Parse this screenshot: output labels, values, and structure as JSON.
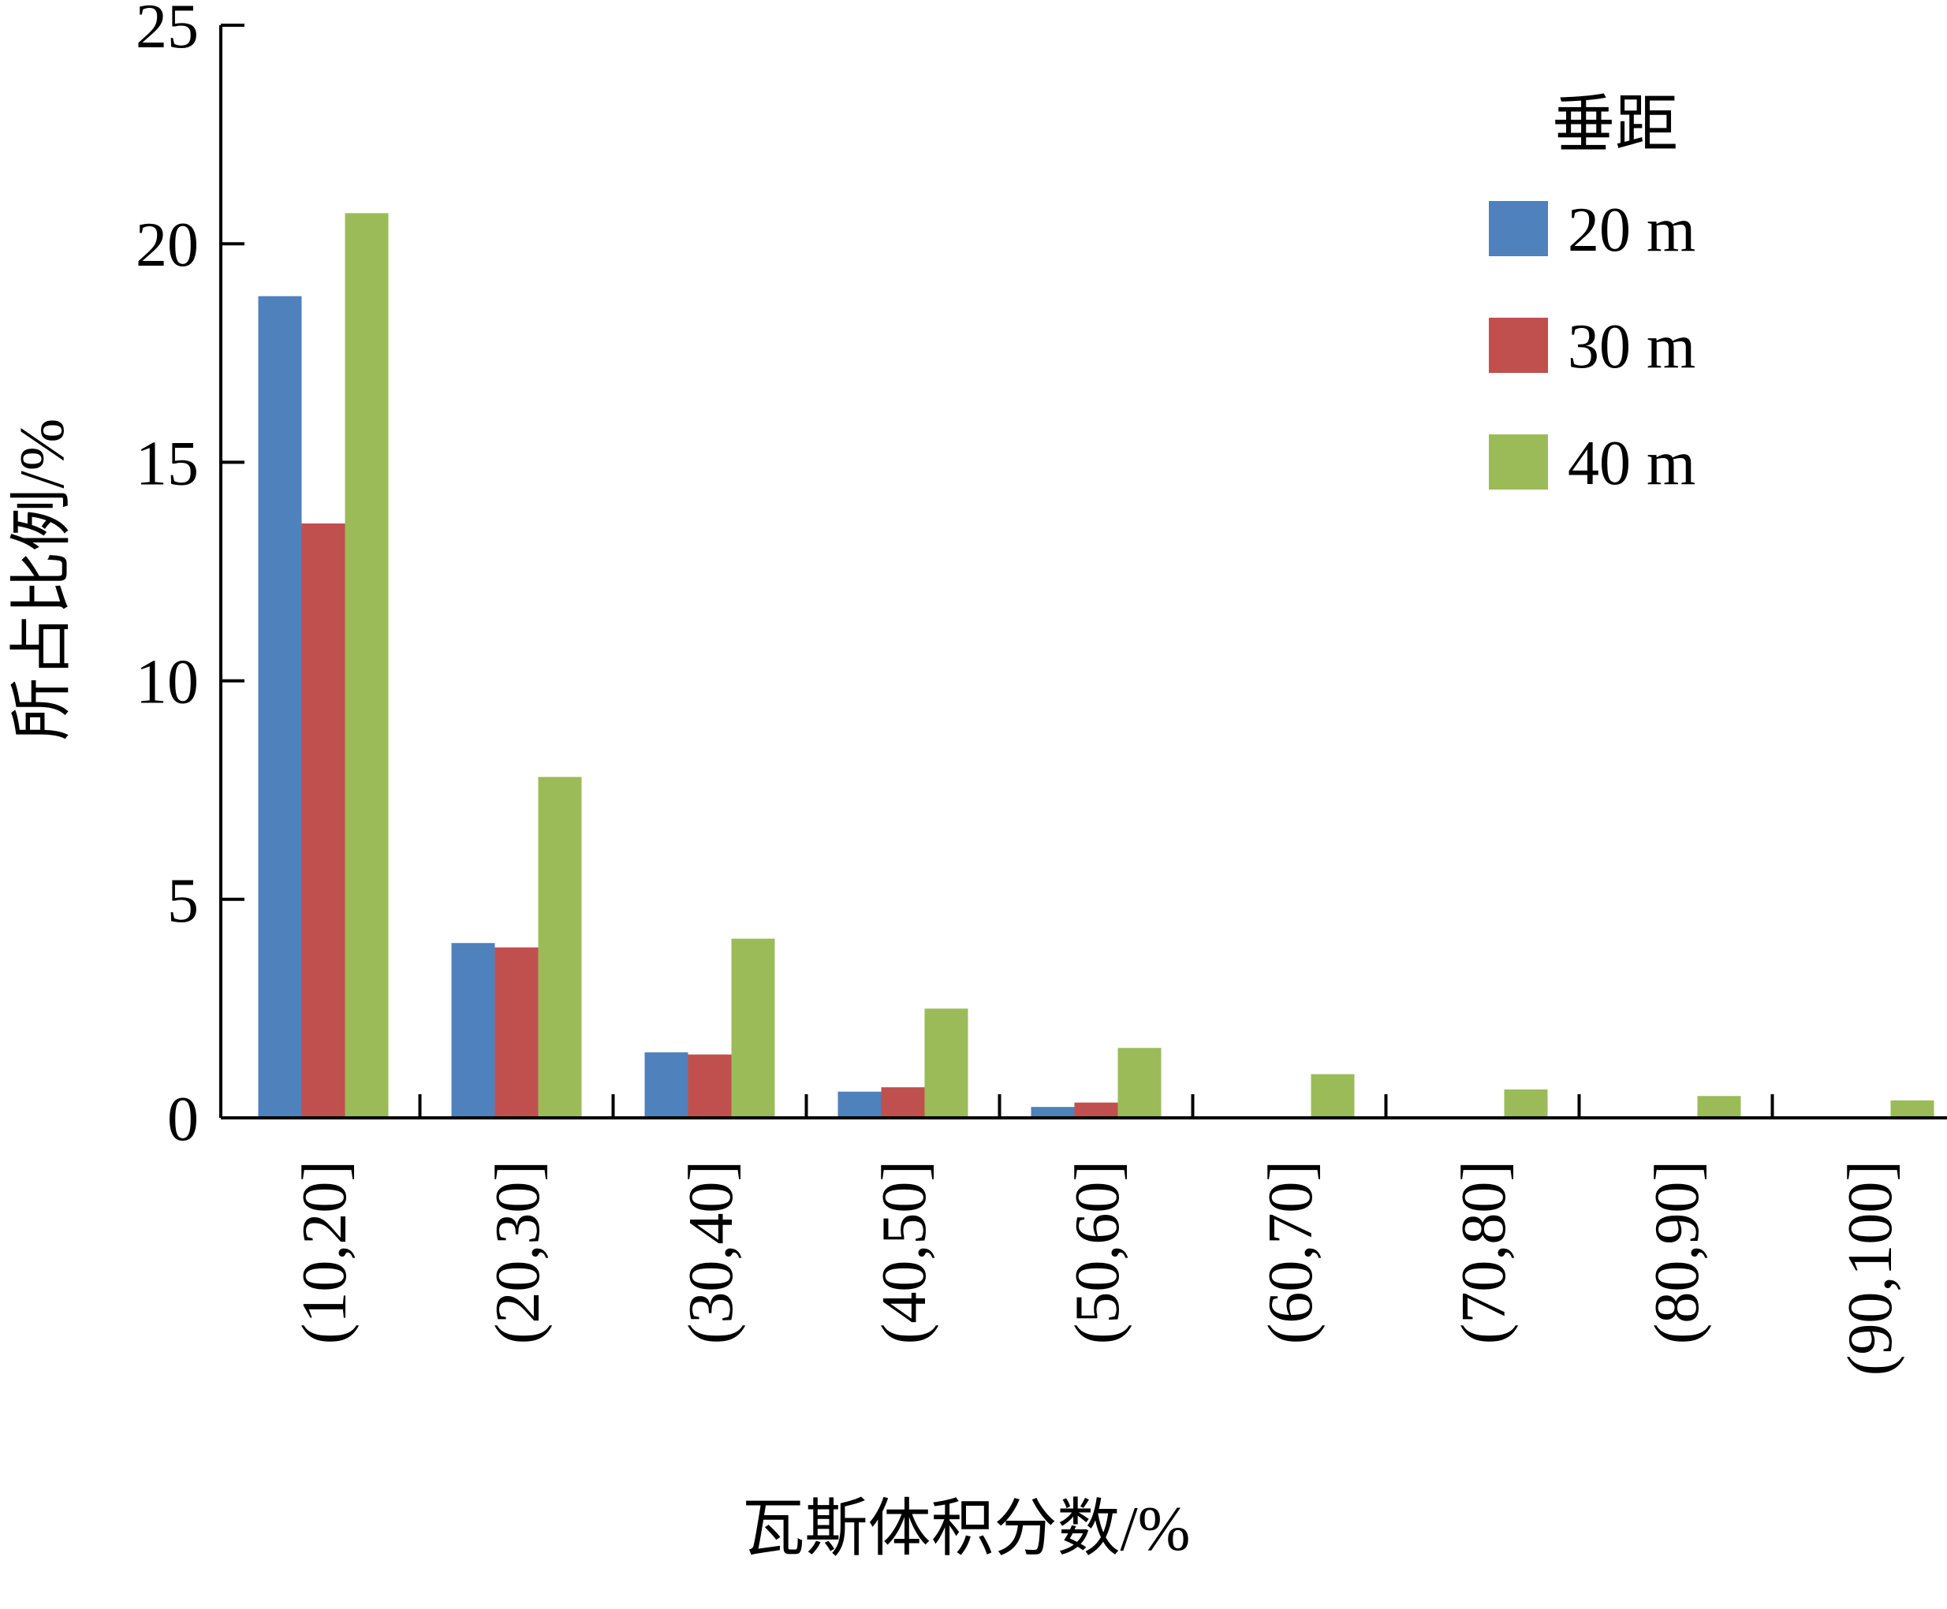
{
  "chart_data": {
    "type": "bar",
    "categories": [
      "(10,20]",
      "(20,30]",
      "(30,40]",
      "(40,50]",
      "(50,60]",
      "(60,70]",
      "(70,80]",
      "(80,90]",
      "(90,100]"
    ],
    "series": [
      {
        "name": "20 m",
        "color": "#4f81bd",
        "values": [
          18.8,
          4.0,
          1.5,
          0.6,
          0.25,
          0,
          0,
          0,
          0
        ]
      },
      {
        "name": "30 m",
        "color": "#c0504d",
        "values": [
          13.6,
          3.9,
          1.45,
          0.7,
          0.35,
          0,
          0,
          0,
          0
        ]
      },
      {
        "name": "40 m",
        "color": "#9bbb59",
        "values": [
          20.7,
          7.8,
          4.1,
          2.5,
          1.6,
          1.0,
          0.65,
          0.5,
          0.4
        ]
      }
    ],
    "xlabel": "瓦斯体积分数/%",
    "ylabel": "所占比例/%",
    "ylim": [
      0,
      25
    ],
    "yticks": [
      0,
      5,
      10,
      15,
      20,
      25
    ],
    "legend_title": "垂距",
    "legend_position": "top-right",
    "grid": false
  }
}
